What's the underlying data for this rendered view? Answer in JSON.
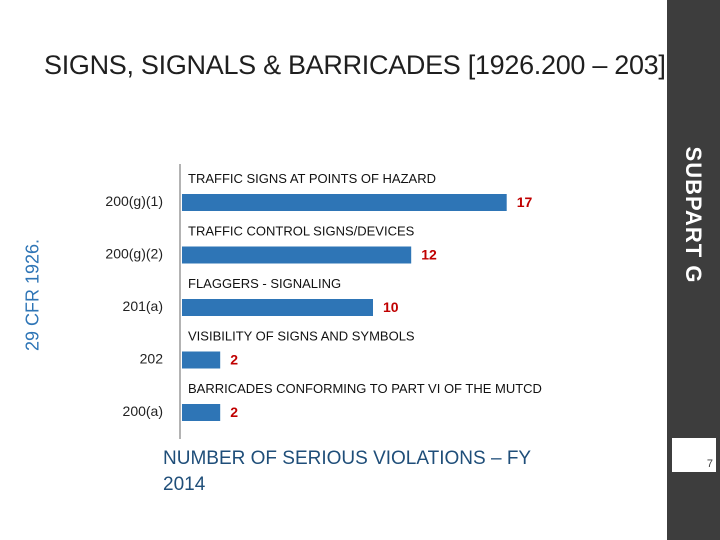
{
  "title": "SIGNS, SIGNALS & BARRICADES [1926.200 – 203]",
  "side_label": "SUBPART G",
  "cfr_label": "29 CFR 1926.",
  "page_number": "7",
  "footer": "NUMBER OF SERIOUS VIOLATIONS – FY 2014",
  "colors": {
    "bar": "#2e75b6",
    "value": "#c00000",
    "side_bar": "#3d3d3d"
  },
  "chart_data": {
    "type": "bar",
    "orientation": "horizontal",
    "categories": [
      "200(g)(1)",
      "200(g)(2)",
      "201(a)",
      "202",
      "200(a)"
    ],
    "descriptions": [
      "TRAFFIC SIGNS AT POINTS OF HAZARD",
      "TRAFFIC CONTROL SIGNS/DEVICES",
      "FLAGGERS - SIGNALING",
      "VISIBILITY OF SIGNS AND SYMBOLS",
      "BARRICADES CONFORMING TO PART VI OF THE MUTCD"
    ],
    "values": [
      17,
      12,
      10,
      2,
      2
    ],
    "xlim": [
      0,
      20
    ],
    "grid": false
  }
}
